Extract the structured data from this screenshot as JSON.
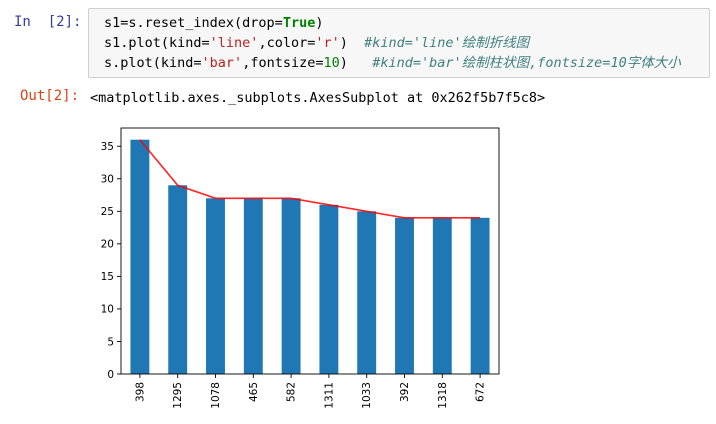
{
  "input_cell": {
    "prompt": "In  [2]:",
    "lines": [
      {
        "before_kw": "s1=s.reset_index(drop=",
        "kw": "True",
        "after_kw": ")"
      },
      {
        "code_a": "s1.plot(kind=",
        "str_a": "'line'",
        "code_b": ",color=",
        "str_b": "'r'",
        "code_c": ") ",
        "comment": " #kind='line'绘制折线图"
      },
      {
        "code_a": "s.plot(kind=",
        "str_a": "'bar'",
        "code_b": ",fontsize=",
        "num": "10",
        "code_c": ")",
        "comment": "   #kind='bar'绘制柱状图,fontsize=10字体大小"
      }
    ]
  },
  "output_cell": {
    "prompt": "Out[2]:",
    "text": "<matplotlib.axes._subplots.AxesSubplot at 0x262f5b7f5c8>"
  },
  "chart_data": {
    "type": "bar",
    "categories": [
      "398",
      "1295",
      "1078",
      "465",
      "582",
      "1311",
      "1033",
      "392",
      "1318",
      "672"
    ],
    "series": [
      {
        "kind": "bar",
        "color": "#1f77b4",
        "values": [
          36,
          29,
          27,
          27,
          27,
          26,
          25,
          24,
          24,
          24
        ]
      },
      {
        "kind": "line",
        "color": "#ff0000",
        "values": [
          36,
          29,
          27,
          27,
          27,
          26,
          25,
          24,
          24,
          24
        ]
      }
    ],
    "yticks": [
      0,
      5,
      10,
      15,
      20,
      25,
      30,
      35
    ],
    "ylim": [
      0,
      37.8
    ],
    "grid": false,
    "title": "",
    "xlabel": "",
    "ylabel": ""
  }
}
